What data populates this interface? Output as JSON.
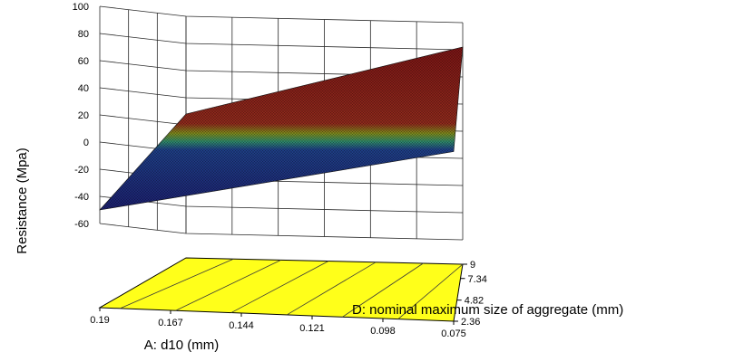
{
  "chart_data": {
    "type": "surface3d",
    "title": "",
    "zlabel": "Resistance (Mpa)",
    "xlabel": "A: d10 (mm)",
    "ylabel": "D: nominal maximum size of aggregate (mm)",
    "z_ticks": [
      "100",
      "80",
      "60",
      "40",
      "20",
      "0",
      "-20",
      "-40",
      "-60"
    ],
    "x_ticks": [
      "0.19",
      "0.167",
      "0.144",
      "0.121",
      "0.098",
      "0.075"
    ],
    "y_ticks": [
      "2.36",
      "4.82",
      "7.34",
      "9"
    ],
    "zlim": [
      -60,
      100
    ],
    "xlim": [
      0.19,
      0.075
    ],
    "ylim": [
      2.36,
      9
    ],
    "surface_corners": [
      {
        "x": 0.19,
        "y": 2.36,
        "z": -50
      },
      {
        "x": 0.19,
        "y": 9,
        "z": 28
      },
      {
        "x": 0.075,
        "y": 9,
        "z": 82
      },
      {
        "x": 0.075,
        "y": 2.36,
        "z": 3
      }
    ],
    "floor_color": "#ffff1a",
    "colormap": [
      "#1a1a80",
      "#2e7d5a",
      "#8a1a1a"
    ]
  }
}
